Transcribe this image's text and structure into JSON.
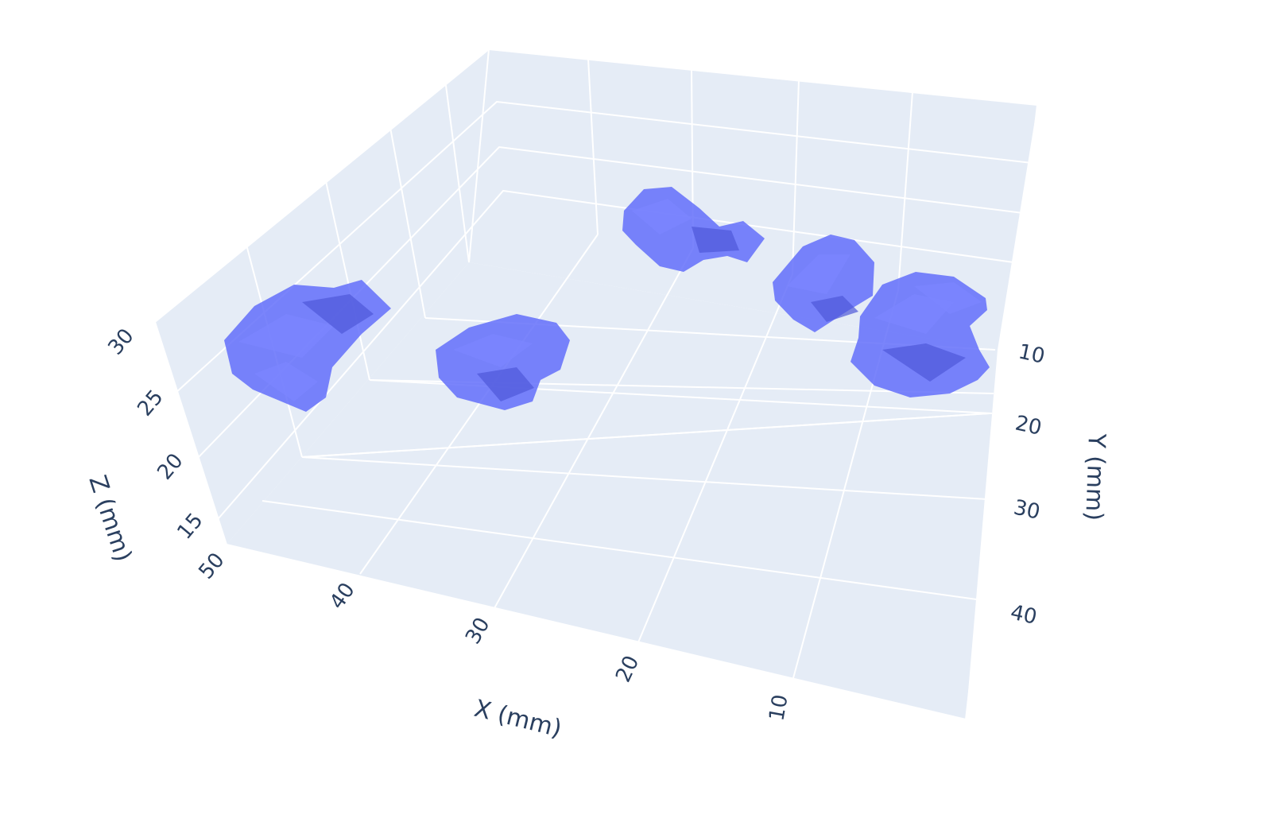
{
  "chart_data": {
    "type": "isosurface-3d",
    "title": "",
    "colors": {
      "background": "#ffffff",
      "pane": "#e5ecf6",
      "grid": "#ffffff",
      "text": "#2a3f5f",
      "surface": "#636efa",
      "surface_shade": "#4f58d8",
      "surface_light": "#7c86ff"
    },
    "axes": {
      "x": {
        "title": "X (mm)",
        "range": [
          0,
          50
        ],
        "ticks": [
          "10",
          "20",
          "30",
          "40",
          "50"
        ]
      },
      "y": {
        "title": "Y (mm)",
        "range": [
          0,
          50
        ],
        "ticks": [
          "10",
          "20",
          "30",
          "40"
        ]
      },
      "z": {
        "title": "Z (mm)",
        "range": [
          12,
          31
        ],
        "ticks": [
          "15",
          "20",
          "25",
          "30"
        ]
      }
    },
    "grid": true,
    "surfaces": [
      {
        "name": "",
        "center_mm": [
          43,
          8,
          26
        ]
      },
      {
        "name": "",
        "center_mm": [
          32,
          14,
          22
        ]
      },
      {
        "name": "",
        "center_mm": [
          19,
          6,
          30
        ]
      },
      {
        "name": "",
        "center_mm": [
          10,
          13,
          28
        ]
      },
      {
        "name": "",
        "center_mm": [
          5,
          19,
          22
        ]
      }
    ]
  }
}
